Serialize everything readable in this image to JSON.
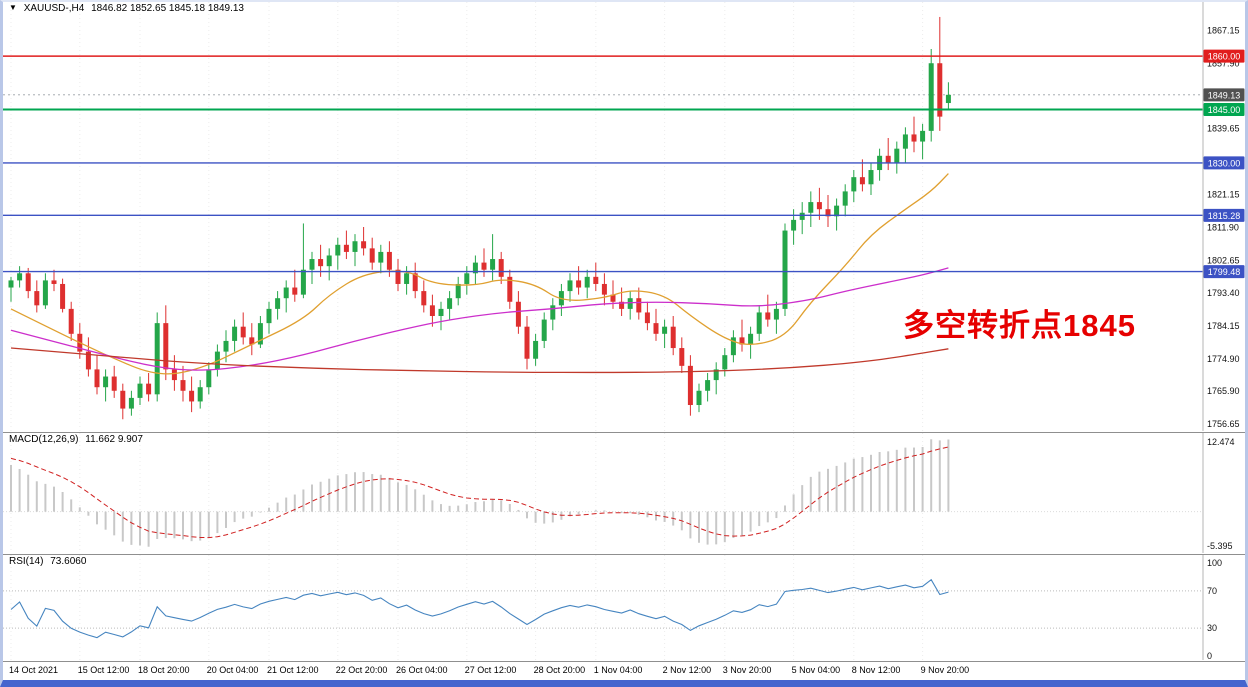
{
  "header": {
    "dropdown_icon": "▼",
    "symbol_timeframe": "XAUUSD-,H4",
    "ohlc_text": "1846.82 1852.65 1845.18 1849.13"
  },
  "annotation": {
    "text": "多空转折点1845",
    "color": "#E60000"
  },
  "colors": {
    "background": "#FFFFFF",
    "candle_up": "#24A649",
    "candle_down": "#DE2F2F",
    "grid": "#ECECEC",
    "panel_border": "#8F8F8F",
    "axis_border": "#B5B5B5",
    "axis_text": "#111111",
    "bid_line": "#9AA0A6",
    "window_side": "#B9C7E8",
    "window_bottom": "#4565CE"
  },
  "chart_data": {
    "type": "candlestick",
    "symbol": "XAUUSD-",
    "timeframe": "H4",
    "current_bar": {
      "open": 1846.82,
      "high": 1852.65,
      "low": 1845.18,
      "close": 1849.13
    },
    "y_range": [
      1754.7,
      1875.2
    ],
    "price_ticks": [
      1867.15,
      1857.9,
      1839.65,
      1821.15,
      1811.9,
      1802.65,
      1793.4,
      1784.15,
      1774.9,
      1765.9,
      1756.65
    ],
    "levels": [
      {
        "price": 1860.0,
        "label": "1860.00",
        "color": "#E11D1D",
        "width": 1.4,
        "kind": "resistance-line"
      },
      {
        "price": 1845.0,
        "label": "1845.00",
        "color": "#00A650",
        "width": 2.0,
        "kind": "pivot-line"
      },
      {
        "price": 1830.0,
        "label": "1830.00",
        "color": "#3C52C4",
        "width": 1.4,
        "kind": "support-line"
      },
      {
        "price": 1815.28,
        "label": "1815.28",
        "color": "#3C52C4",
        "width": 1.4,
        "kind": "support-line"
      },
      {
        "price": 1799.48,
        "label": "1799.48",
        "color": "#3C52C4",
        "width": 1.4,
        "kind": "support-line"
      }
    ],
    "bid": {
      "price": 1849.13,
      "label": "1849.13",
      "color": "#515151"
    },
    "candles": [
      [
        1795,
        1798,
        1791,
        1797
      ],
      [
        1797,
        1801,
        1795,
        1799
      ],
      [
        1799,
        1800.5,
        1792,
        1794
      ],
      [
        1794,
        1797,
        1788,
        1790
      ],
      [
        1790,
        1799,
        1789,
        1797
      ],
      [
        1797,
        1800,
        1794,
        1796
      ],
      [
        1796,
        1797.5,
        1788,
        1789
      ],
      [
        1789,
        1791,
        1780,
        1782
      ],
      [
        1782,
        1785,
        1775,
        1777
      ],
      [
        1777,
        1781,
        1770,
        1772
      ],
      [
        1772,
        1776,
        1765,
        1767
      ],
      [
        1767,
        1772,
        1763,
        1770
      ],
      [
        1770,
        1773,
        1764,
        1766
      ],
      [
        1766,
        1768,
        1758,
        1761
      ],
      [
        1761,
        1766,
        1759,
        1764
      ],
      [
        1764,
        1770,
        1762,
        1768
      ],
      [
        1768,
        1771,
        1763,
        1765
      ],
      [
        1765,
        1788,
        1763,
        1785
      ],
      [
        1785,
        1790,
        1769,
        1772
      ],
      [
        1772,
        1776,
        1766,
        1769
      ],
      [
        1769,
        1773,
        1763,
        1766
      ],
      [
        1766,
        1770,
        1760,
        1763
      ],
      [
        1763,
        1769,
        1761,
        1767
      ],
      [
        1767,
        1774,
        1765,
        1772
      ],
      [
        1772,
        1779,
        1770,
        1777
      ],
      [
        1777,
        1783,
        1774,
        1780
      ],
      [
        1780,
        1786,
        1777,
        1784
      ],
      [
        1784,
        1788,
        1779,
        1781
      ],
      [
        1781,
        1785,
        1776,
        1779
      ],
      [
        1779,
        1787,
        1778,
        1785
      ],
      [
        1785,
        1791,
        1782,
        1789
      ],
      [
        1789,
        1794,
        1786,
        1792
      ],
      [
        1792,
        1797,
        1788,
        1795
      ],
      [
        1795,
        1800,
        1791,
        1793
      ],
      [
        1793,
        1813,
        1792,
        1800
      ],
      [
        1800,
        1805,
        1796,
        1803
      ],
      [
        1803,
        1807,
        1798,
        1801
      ],
      [
        1801,
        1806,
        1797,
        1804
      ],
      [
        1804,
        1809,
        1800,
        1807
      ],
      [
        1807,
        1811,
        1803,
        1805
      ],
      [
        1805,
        1810,
        1801,
        1808
      ],
      [
        1808,
        1812,
        1804,
        1806
      ],
      [
        1806,
        1809,
        1800,
        1802
      ],
      [
        1802,
        1807,
        1799,
        1805
      ],
      [
        1805,
        1808,
        1798,
        1800
      ],
      [
        1800,
        1803,
        1794,
        1796
      ],
      [
        1796,
        1801,
        1793,
        1799
      ],
      [
        1799,
        1802,
        1792,
        1794
      ],
      [
        1794,
        1797,
        1788,
        1790
      ],
      [
        1790,
        1793,
        1784,
        1787
      ],
      [
        1787,
        1791,
        1783,
        1789
      ],
      [
        1789,
        1794,
        1786,
        1792
      ],
      [
        1792,
        1798,
        1790,
        1796
      ],
      [
        1796,
        1801,
        1793,
        1799
      ],
      [
        1799,
        1804,
        1796,
        1802
      ],
      [
        1802,
        1806,
        1798,
        1800
      ],
      [
        1800,
        1810,
        1797,
        1803
      ],
      [
        1803,
        1805,
        1796,
        1798
      ],
      [
        1798,
        1800,
        1789,
        1791
      ],
      [
        1791,
        1794,
        1782,
        1784
      ],
      [
        1784,
        1787,
        1772,
        1775
      ],
      [
        1775,
        1782,
        1773,
        1780
      ],
      [
        1780,
        1788,
        1778,
        1786
      ],
      [
        1786,
        1792,
        1783,
        1790
      ],
      [
        1790,
        1796,
        1787,
        1794
      ],
      [
        1794,
        1799,
        1791,
        1797
      ],
      [
        1797,
        1801,
        1793,
        1795
      ],
      [
        1795,
        1800,
        1792,
        1798
      ],
      [
        1798,
        1802,
        1794,
        1796
      ],
      [
        1796,
        1799,
        1790,
        1793
      ],
      [
        1793,
        1797,
        1789,
        1791
      ],
      [
        1791,
        1795,
        1787,
        1789
      ],
      [
        1789,
        1794,
        1786,
        1792
      ],
      [
        1792,
        1795,
        1786,
        1788
      ],
      [
        1788,
        1791,
        1783,
        1785
      ],
      [
        1785,
        1789,
        1780,
        1782
      ],
      [
        1782,
        1786,
        1778,
        1784
      ],
      [
        1784,
        1787,
        1776,
        1778
      ],
      [
        1778,
        1781,
        1771,
        1773
      ],
      [
        1773,
        1776,
        1759,
        1762
      ],
      [
        1762,
        1768,
        1760,
        1766
      ],
      [
        1766,
        1771,
        1763,
        1769
      ],
      [
        1769,
        1774,
        1765,
        1772
      ],
      [
        1772,
        1778,
        1770,
        1776
      ],
      [
        1776,
        1783,
        1774,
        1781
      ],
      [
        1781,
        1786,
        1777,
        1779
      ],
      [
        1779,
        1784,
        1775,
        1782
      ],
      [
        1782,
        1790,
        1780,
        1788
      ],
      [
        1788,
        1793,
        1784,
        1786
      ],
      [
        1786,
        1791,
        1782,
        1789
      ],
      [
        1789,
        1813,
        1787,
        1811
      ],
      [
        1811,
        1817,
        1807,
        1814
      ],
      [
        1814,
        1819,
        1810,
        1816
      ],
      [
        1816,
        1822,
        1812,
        1819
      ],
      [
        1819,
        1823,
        1814,
        1817
      ],
      [
        1817,
        1821,
        1812,
        1815
      ],
      [
        1815,
        1820,
        1811,
        1818
      ],
      [
        1818,
        1824,
        1815,
        1822
      ],
      [
        1822,
        1828,
        1819,
        1826
      ],
      [
        1826,
        1831,
        1822,
        1824
      ],
      [
        1824,
        1830,
        1821,
        1828
      ],
      [
        1828,
        1834,
        1825,
        1832
      ],
      [
        1832,
        1837,
        1828,
        1830
      ],
      [
        1830,
        1836,
        1827,
        1834
      ],
      [
        1834,
        1840,
        1830,
        1838
      ],
      [
        1838,
        1843,
        1833,
        1836
      ],
      [
        1836,
        1841,
        1831,
        1839
      ],
      [
        1839,
        1862,
        1836,
        1858
      ],
      [
        1858,
        1871,
        1839,
        1843
      ],
      [
        1846.82,
        1852.65,
        1845.18,
        1849.13
      ]
    ],
    "time_labels": [
      {
        "idx": 0,
        "label": "14 Oct 2021"
      },
      {
        "idx": 8,
        "label": "15 Oct 12:00"
      },
      {
        "idx": 15,
        "label": "18 Oct 20:00"
      },
      {
        "idx": 23,
        "label": "20 Oct 04:00"
      },
      {
        "idx": 30,
        "label": "21 Oct 12:00"
      },
      {
        "idx": 38,
        "label": "22 Oct 20:00"
      },
      {
        "idx": 45,
        "label": "26 Oct 04:00"
      },
      {
        "idx": 53,
        "label": "27 Oct 12:00"
      },
      {
        "idx": 61,
        "label": "28 Oct 20:00"
      },
      {
        "idx": 68,
        "label": "1 Nov 04:00"
      },
      {
        "idx": 76,
        "label": "2 Nov 12:00"
      },
      {
        "idx": 83,
        "label": "3 Nov 20:00"
      },
      {
        "idx": 91,
        "label": "5 Nov 04:00"
      },
      {
        "idx": 98,
        "label": "8 Nov 12:00"
      },
      {
        "idx": 106,
        "label": "9 Nov 20:00"
      }
    ],
    "ma_series": [
      {
        "name": "ma-fast",
        "color": "#E0A030",
        "points": [
          [
            0,
            1789
          ],
          [
            5,
            1783
          ],
          [
            11,
            1776
          ],
          [
            17,
            1770
          ],
          [
            22,
            1772
          ],
          [
            28,
            1779
          ],
          [
            34,
            1786
          ],
          [
            37,
            1793
          ],
          [
            41,
            1799
          ],
          [
            46,
            1800
          ],
          [
            49,
            1796
          ],
          [
            54,
            1795.5
          ],
          [
            57,
            1797.5
          ],
          [
            61,
            1796
          ],
          [
            64,
            1791
          ],
          [
            69,
            1792
          ],
          [
            72,
            1794.5
          ],
          [
            76,
            1793
          ],
          [
            79,
            1787
          ],
          [
            83,
            1780.5
          ],
          [
            86,
            1778.5
          ],
          [
            90,
            1781
          ],
          [
            93,
            1791
          ],
          [
            97,
            1801
          ],
          [
            100,
            1810
          ],
          [
            104,
            1817
          ],
          [
            107,
            1822
          ],
          [
            109,
            1827
          ]
        ]
      },
      {
        "name": "ma-medium",
        "color": "#CC2FCB",
        "points": [
          [
            0,
            1783
          ],
          [
            11,
            1776
          ],
          [
            17,
            1772.5
          ],
          [
            22,
            1771.5
          ],
          [
            28,
            1773
          ],
          [
            34,
            1776
          ],
          [
            40,
            1780
          ],
          [
            46,
            1783.5
          ],
          [
            51,
            1786
          ],
          [
            57,
            1788
          ],
          [
            63,
            1789
          ],
          [
            69,
            1790.5
          ],
          [
            75,
            1791
          ],
          [
            81,
            1790.5
          ],
          [
            87,
            1789.5
          ],
          [
            93,
            1791.5
          ],
          [
            97,
            1794
          ],
          [
            102,
            1796.5
          ],
          [
            106,
            1798.5
          ],
          [
            109,
            1800.5
          ]
        ]
      },
      {
        "name": "ma-slow",
        "color": "#C0392B",
        "points": [
          [
            0,
            1778
          ],
          [
            12,
            1775.5
          ],
          [
            23,
            1773.5
          ],
          [
            35,
            1772.3
          ],
          [
            47,
            1771.6
          ],
          [
            58,
            1771.2
          ],
          [
            70,
            1771.1
          ],
          [
            81,
            1771.4
          ],
          [
            90,
            1772.3
          ],
          [
            99,
            1774
          ],
          [
            105,
            1776.2
          ],
          [
            109,
            1777.8
          ]
        ]
      }
    ],
    "indicators": {
      "macd": {
        "label": "MACD(12,26,9)",
        "values": "11.662 9.907",
        "params": [
          12,
          26,
          9
        ],
        "axis_labels": [
          "12.474",
          "-5.395"
        ],
        "histogram_color": "#C8C8C8",
        "signal_color": "#D02020"
      },
      "rsi": {
        "label": "RSI(14)",
        "value": "73.6060",
        "period": 14,
        "axis_labels": [
          100,
          70,
          30,
          0
        ],
        "level_lines": [
          70,
          30
        ],
        "line_color": "#4685C0"
      }
    }
  }
}
